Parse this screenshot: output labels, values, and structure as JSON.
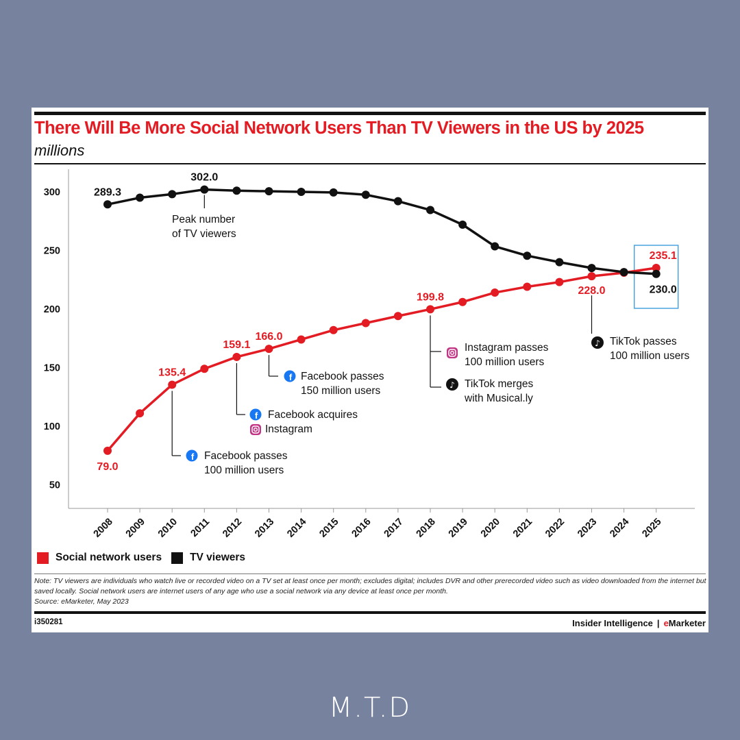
{
  "title": "There Will Be More Social Network Users Than TV Viewers in the US by 2025",
  "subtitle": "millions",
  "legend": {
    "social": "Social network users",
    "tv": "TV viewers"
  },
  "colors": {
    "social": "#e31b23",
    "tv": "#111111",
    "highlight": "#4aa3df"
  },
  "notes": [
    "Note: TV viewers are individuals who watch live or recorded video on a TV set at least once per month; excludes digital; includes DVR and other prerecorded video such as video downloaded from the internet but saved locally. Social network users are internet users of any age who use a social network via any device at least once per month.",
    "Source: eMarketer, May 2023"
  ],
  "chart_id": "i350281",
  "brand": {
    "left": "Insider Intelligence",
    "separator": "|",
    "e": "e",
    "rest": "Marketer"
  },
  "footer_logo": "M.T.D",
  "chart_data": {
    "type": "line",
    "x": [
      "2008",
      "2009",
      "2010",
      "2011",
      "2012",
      "2013",
      "2014",
      "2015",
      "2016",
      "2017",
      "2018",
      "2019",
      "2020",
      "2021",
      "2022",
      "2023",
      "2024",
      "2025"
    ],
    "yticks": [
      50,
      100,
      150,
      200,
      250,
      300
    ],
    "ylim": [
      40,
      310
    ],
    "series": [
      {
        "name": "Social network users",
        "color": "#e31b23",
        "values": [
          79.0,
          111,
          135.4,
          149,
          159.1,
          166.0,
          174,
          182,
          188,
          194,
          199.8,
          206,
          214,
          219,
          223,
          228.0,
          231,
          235.1
        ]
      },
      {
        "name": "TV viewers",
        "color": "#111111",
        "values": [
          289.3,
          295,
          298,
          302.0,
          301,
          300.5,
          300,
          299.5,
          297.5,
          292,
          284.5,
          272,
          253.5,
          245.5,
          240,
          235,
          231.5,
          230.0
        ]
      }
    ],
    "data_labels": [
      {
        "series": 0,
        "index": 0,
        "text": "79.0",
        "pos": "below"
      },
      {
        "series": 0,
        "index": 2,
        "text": "135.4",
        "pos": "above"
      },
      {
        "series": 0,
        "index": 4,
        "text": "159.1",
        "pos": "above"
      },
      {
        "series": 0,
        "index": 5,
        "text": "166.0",
        "pos": "above"
      },
      {
        "series": 0,
        "index": 10,
        "text": "199.8",
        "pos": "above"
      },
      {
        "series": 0,
        "index": 15,
        "text": "228.0",
        "pos": "below"
      },
      {
        "series": 0,
        "index": 17,
        "text": "235.1",
        "pos": "above"
      },
      {
        "series": 1,
        "index": 0,
        "text": "289.3",
        "pos": "above"
      },
      {
        "series": 1,
        "index": 3,
        "text": "302.0",
        "pos": "above"
      },
      {
        "series": 1,
        "index": 17,
        "text": "230.0",
        "pos": "below"
      }
    ],
    "annotations": [
      {
        "text": [
          "Peak number",
          "of TV viewers"
        ],
        "anchor_series": 1,
        "anchor_index": 3,
        "icons": []
      },
      {
        "text": [
          "Facebook passes",
          "100 million users"
        ],
        "anchor_series": 0,
        "anchor_index": 2,
        "icons": [
          "facebook-icon"
        ]
      },
      {
        "text": [
          "Facebook acquires",
          "Instagram"
        ],
        "anchor_series": 0,
        "anchor_index": 4,
        "icons": [
          "facebook-icon",
          "instagram-icon"
        ]
      },
      {
        "text": [
          "Facebook passes",
          "150 million users"
        ],
        "anchor_series": 0,
        "anchor_index": 5,
        "icons": [
          "facebook-icon"
        ]
      },
      {
        "text": [
          "Instagram passes",
          "100 million users"
        ],
        "anchor_series": 0,
        "anchor_index": 10,
        "icons": [
          "instagram-icon"
        ]
      },
      {
        "text": [
          "TikTok merges",
          "with Musical.ly"
        ],
        "anchor_series": 0,
        "anchor_index": 10,
        "icons": [
          "tiktok-icon"
        ]
      },
      {
        "text": [
          "TikTok passes",
          "100 million users"
        ],
        "anchor_series": 0,
        "anchor_index": 15,
        "icons": [
          "tiktok-icon"
        ]
      }
    ],
    "grid": false,
    "legend_position": "bottom-left"
  }
}
